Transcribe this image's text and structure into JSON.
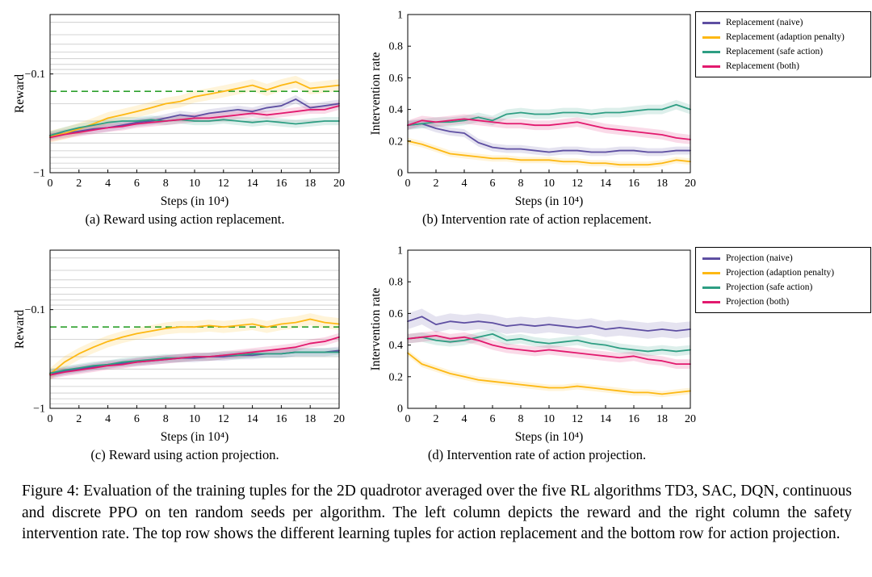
{
  "colors": {
    "naive": "#5E4FA2",
    "adaption_penalty": "#FDB813",
    "safe_action": "#2E9E83",
    "both": "#E2196E",
    "reference": "#2CA02C",
    "grid": "#C9C9C9",
    "frame": "#000000"
  },
  "subcaptions": {
    "a": "(a) Reward using action replacement.",
    "b": "(b) Intervention rate of action replacement.",
    "c": "(c) Reward using action projection.",
    "d": "(d) Intervention rate of action projection."
  },
  "figure_caption": "Figure 4: Evaluation of the training tuples for the 2D quadrotor averaged over the five RL algorithms TD3, SAC, DQN, continuous and discrete PPO on ten random seeds per algorithm. The left column depicts the reward and the right column the safety intervention rate. The top row shows the different learning tuples for action replacement and the bottom row for action projection.",
  "chart_data": [
    {
      "id": "a",
      "type": "line",
      "title": "Reward using action replacement",
      "xlabel": "Steps (in 10⁴)",
      "ylabel": "Reward",
      "xlim": [
        0,
        20
      ],
      "x_step": 1,
      "xticks": [
        0,
        2,
        4,
        6,
        8,
        10,
        12,
        14,
        16,
        18,
        20
      ],
      "yscale": "neglog",
      "ylim_top": -0.025,
      "ylim_bottom": -1,
      "yticks": [
        {
          "v": -0.1,
          "label": "−0.1"
        },
        {
          "v": -1,
          "label": "−1"
        }
      ],
      "grid_values": [
        -0.03,
        -0.04,
        -0.05,
        -0.06,
        -0.07,
        -0.08,
        -0.09,
        -0.1,
        -0.2,
        -0.3,
        -0.4,
        -0.5,
        -0.6,
        -0.7,
        -0.8,
        -0.9
      ],
      "ref_line": {
        "value": -0.15,
        "color": "#2CA02C",
        "style": "dashed"
      },
      "legend_position": "none",
      "series": [
        {
          "key": "naive",
          "name": "Replacement (naive)",
          "color": "#5E4FA2",
          "band": 1.1,
          "values": [
            -0.42,
            -0.4,
            -0.38,
            -0.36,
            -0.35,
            -0.33,
            -0.31,
            -0.3,
            -0.28,
            -0.26,
            -0.27,
            -0.25,
            -0.24,
            -0.23,
            -0.24,
            -0.22,
            -0.21,
            -0.18,
            -0.22,
            -0.21,
            -0.2
          ]
        },
        {
          "key": "adaption-penalty",
          "name": "Replacement (adaption penalty)",
          "color": "#FDB813",
          "band": 1.15,
          "values": [
            -0.43,
            -0.4,
            -0.36,
            -0.32,
            -0.28,
            -0.26,
            -0.24,
            -0.22,
            -0.2,
            -0.19,
            -0.17,
            -0.16,
            -0.15,
            -0.14,
            -0.13,
            -0.145,
            -0.13,
            -0.12,
            -0.14,
            -0.135,
            -0.13
          ]
        },
        {
          "key": "safe-action",
          "name": "Replacement (safe action)",
          "color": "#2E9E83",
          "band": 1.1,
          "values": [
            -0.42,
            -0.38,
            -0.35,
            -0.33,
            -0.31,
            -0.3,
            -0.3,
            -0.29,
            -0.3,
            -0.29,
            -0.3,
            -0.3,
            -0.29,
            -0.3,
            -0.31,
            -0.3,
            -0.31,
            -0.32,
            -0.31,
            -0.3,
            -0.3
          ]
        },
        {
          "key": "both",
          "name": "Replacement (both)",
          "color": "#E2196E",
          "band": 1.1,
          "values": [
            -0.44,
            -0.41,
            -0.39,
            -0.37,
            -0.35,
            -0.34,
            -0.32,
            -0.31,
            -0.3,
            -0.29,
            -0.28,
            -0.28,
            -0.27,
            -0.26,
            -0.25,
            -0.26,
            -0.25,
            -0.24,
            -0.23,
            -0.23,
            -0.21
          ]
        }
      ]
    },
    {
      "id": "b",
      "type": "line",
      "title": "Intervention rate of action replacement",
      "xlabel": "Steps (in 10⁴)",
      "ylabel": "Intervention rate",
      "xlim": [
        0,
        20
      ],
      "x_step": 1,
      "xticks": [
        0,
        2,
        4,
        6,
        8,
        10,
        12,
        14,
        16,
        18,
        20
      ],
      "yscale": "linear",
      "ylim": [
        0,
        1
      ],
      "yticks": [
        {
          "v": 0,
          "label": "0"
        },
        {
          "v": 0.2,
          "label": "0.2"
        },
        {
          "v": 0.4,
          "label": "0.4"
        },
        {
          "v": 0.6,
          "label": "0.6"
        },
        {
          "v": 0.8,
          "label": "0.8"
        },
        {
          "v": 1,
          "label": "1"
        }
      ],
      "legend_position": "outside-right",
      "series": [
        {
          "key": "naive",
          "name": "Replacement (naive)",
          "color": "#5E4FA2",
          "band": 0.025,
          "values": [
            0.3,
            0.31,
            0.28,
            0.26,
            0.25,
            0.19,
            0.16,
            0.15,
            0.15,
            0.14,
            0.13,
            0.14,
            0.14,
            0.13,
            0.13,
            0.14,
            0.14,
            0.13,
            0.13,
            0.14,
            0.14
          ]
        },
        {
          "key": "adaption-penalty",
          "name": "Replacement (adaption penalty)",
          "color": "#FDB813",
          "band": 0.02,
          "values": [
            0.2,
            0.18,
            0.15,
            0.12,
            0.11,
            0.1,
            0.09,
            0.09,
            0.08,
            0.08,
            0.08,
            0.07,
            0.07,
            0.06,
            0.06,
            0.05,
            0.05,
            0.05,
            0.06,
            0.08,
            0.07
          ]
        },
        {
          "key": "safe-action",
          "name": "Replacement (safe action)",
          "color": "#2E9E83",
          "band": 0.03,
          "values": [
            0.3,
            0.31,
            0.32,
            0.32,
            0.33,
            0.35,
            0.33,
            0.37,
            0.38,
            0.37,
            0.37,
            0.38,
            0.38,
            0.37,
            0.38,
            0.38,
            0.39,
            0.4,
            0.4,
            0.43,
            0.4
          ]
        },
        {
          "key": "both",
          "name": "Replacement (both)",
          "color": "#E2196E",
          "band": 0.03,
          "values": [
            0.3,
            0.33,
            0.32,
            0.33,
            0.34,
            0.33,
            0.32,
            0.31,
            0.31,
            0.3,
            0.3,
            0.31,
            0.32,
            0.3,
            0.28,
            0.27,
            0.26,
            0.25,
            0.24,
            0.22,
            0.21
          ]
        }
      ]
    },
    {
      "id": "c",
      "type": "line",
      "title": "Reward using action projection",
      "xlabel": "Steps (in 10⁴)",
      "ylabel": "Reward",
      "xlim": [
        0,
        20
      ],
      "x_step": 1,
      "xticks": [
        0,
        2,
        4,
        6,
        8,
        10,
        12,
        14,
        16,
        18,
        20
      ],
      "yscale": "neglog",
      "ylim_top": -0.025,
      "ylim_bottom": -1,
      "yticks": [
        {
          "v": -0.1,
          "label": "−0.1"
        },
        {
          "v": -1,
          "label": "−1"
        }
      ],
      "grid_values": [
        -0.03,
        -0.04,
        -0.05,
        -0.06,
        -0.07,
        -0.08,
        -0.09,
        -0.1,
        -0.2,
        -0.3,
        -0.4,
        -0.5,
        -0.6,
        -0.7,
        -0.8,
        -0.9
      ],
      "ref_line": {
        "value": -0.15,
        "color": "#2CA02C",
        "style": "dashed"
      },
      "legend_position": "none",
      "series": [
        {
          "key": "naive",
          "name": "Projection (naive)",
          "color": "#5E4FA2",
          "band": 1.1,
          "values": [
            -0.45,
            -0.42,
            -0.4,
            -0.38,
            -0.36,
            -0.35,
            -0.34,
            -0.33,
            -0.32,
            -0.31,
            -0.31,
            -0.3,
            -0.3,
            -0.29,
            -0.29,
            -0.28,
            -0.28,
            -0.27,
            -0.27,
            -0.27,
            -0.26
          ]
        },
        {
          "key": "adaption-penalty",
          "name": "Projection (adaption penalty)",
          "color": "#FDB813",
          "band": 1.15,
          "values": [
            -0.45,
            -0.34,
            -0.28,
            -0.24,
            -0.21,
            -0.19,
            -0.175,
            -0.165,
            -0.155,
            -0.15,
            -0.15,
            -0.145,
            -0.15,
            -0.145,
            -0.14,
            -0.15,
            -0.14,
            -0.135,
            -0.125,
            -0.135,
            -0.14
          ]
        },
        {
          "key": "safe-action",
          "name": "Projection (safe action)",
          "color": "#2E9E83",
          "band": 1.1,
          "values": [
            -0.44,
            -0.41,
            -0.39,
            -0.37,
            -0.36,
            -0.34,
            -0.33,
            -0.32,
            -0.31,
            -0.31,
            -0.3,
            -0.3,
            -0.29,
            -0.29,
            -0.28,
            -0.28,
            -0.28,
            -0.27,
            -0.27,
            -0.27,
            -0.27
          ]
        },
        {
          "key": "both",
          "name": "Projection (both)",
          "color": "#E2196E",
          "band": 1.1,
          "values": [
            -0.46,
            -0.43,
            -0.41,
            -0.39,
            -0.37,
            -0.36,
            -0.34,
            -0.33,
            -0.32,
            -0.31,
            -0.3,
            -0.3,
            -0.29,
            -0.28,
            -0.27,
            -0.26,
            -0.25,
            -0.24,
            -0.22,
            -0.21,
            -0.19
          ]
        }
      ]
    },
    {
      "id": "d",
      "type": "line",
      "title": "Intervention rate of action projection",
      "xlabel": "Steps (in 10⁴)",
      "ylabel": "Intervention rate",
      "xlim": [
        0,
        20
      ],
      "x_step": 1,
      "xticks": [
        0,
        2,
        4,
        6,
        8,
        10,
        12,
        14,
        16,
        18,
        20
      ],
      "yscale": "linear",
      "ylim": [
        0,
        1
      ],
      "yticks": [
        {
          "v": 0,
          "label": "0"
        },
        {
          "v": 0.2,
          "label": "0.2"
        },
        {
          "v": 0.4,
          "label": "0.4"
        },
        {
          "v": 0.6,
          "label": "0.6"
        },
        {
          "v": 0.8,
          "label": "0.8"
        },
        {
          "v": 1,
          "label": "1"
        }
      ],
      "legend_position": "outside-right",
      "series": [
        {
          "key": "naive",
          "name": "Projection (naive)",
          "color": "#5E4FA2",
          "band": 0.05,
          "values": [
            0.55,
            0.58,
            0.53,
            0.55,
            0.54,
            0.55,
            0.54,
            0.52,
            0.53,
            0.52,
            0.53,
            0.52,
            0.51,
            0.52,
            0.5,
            0.51,
            0.5,
            0.49,
            0.5,
            0.49,
            0.5
          ]
        },
        {
          "key": "adaption-penalty",
          "name": "Projection (adaption penalty)",
          "color": "#FDB813",
          "band": 0.02,
          "values": [
            0.35,
            0.28,
            0.25,
            0.22,
            0.2,
            0.18,
            0.17,
            0.16,
            0.15,
            0.14,
            0.13,
            0.13,
            0.14,
            0.13,
            0.12,
            0.11,
            0.1,
            0.1,
            0.09,
            0.1,
            0.11
          ]
        },
        {
          "key": "safe-action",
          "name": "Projection (safe action)",
          "color": "#2E9E83",
          "band": 0.03,
          "values": [
            0.44,
            0.45,
            0.43,
            0.42,
            0.43,
            0.45,
            0.47,
            0.43,
            0.44,
            0.42,
            0.41,
            0.42,
            0.43,
            0.41,
            0.4,
            0.38,
            0.37,
            0.36,
            0.37,
            0.36,
            0.37
          ]
        },
        {
          "key": "both",
          "name": "Projection (both)",
          "color": "#E2196E",
          "band": 0.03,
          "values": [
            0.44,
            0.45,
            0.46,
            0.44,
            0.45,
            0.43,
            0.4,
            0.38,
            0.37,
            0.36,
            0.37,
            0.36,
            0.35,
            0.34,
            0.33,
            0.32,
            0.33,
            0.31,
            0.3,
            0.28,
            0.28
          ]
        }
      ]
    }
  ]
}
